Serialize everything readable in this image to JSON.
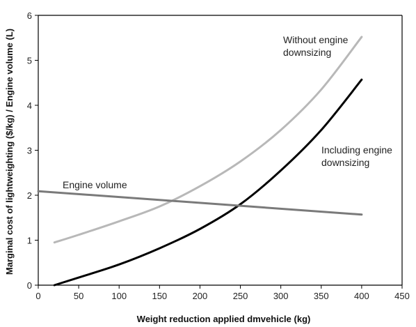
{
  "chart_data": {
    "type": "line",
    "xlabel": "Weight reduction applied dmvehicle (kg)",
    "ylabel": "Marginal cost of lightweighting ($/kg) / Engine volume (L)",
    "xlim": [
      0,
      450
    ],
    "ylim": [
      0,
      6
    ],
    "xticks": [
      0,
      50,
      100,
      150,
      200,
      250,
      300,
      350,
      400,
      450
    ],
    "yticks": [
      0,
      1,
      2,
      3,
      4,
      5,
      6
    ],
    "grid": false,
    "series": [
      {
        "name": "Without engine downsizing",
        "color": "#b8b8b8",
        "x": [
          20,
          50,
          100,
          150,
          200,
          250,
          300,
          350,
          400
        ],
        "y": [
          0.95,
          1.12,
          1.42,
          1.75,
          2.2,
          2.75,
          3.45,
          4.35,
          5.52
        ]
      },
      {
        "name": "Including engine downsizing",
        "color": "#000000",
        "x": [
          20,
          50,
          100,
          150,
          200,
          250,
          300,
          350,
          400
        ],
        "y": [
          0.0,
          0.17,
          0.46,
          0.82,
          1.25,
          1.8,
          2.55,
          3.45,
          4.57
        ]
      },
      {
        "name": "Engine volume",
        "color": "#7a7a7a",
        "x": [
          0,
          400
        ],
        "y": [
          2.09,
          1.57
        ]
      }
    ],
    "annotations": [
      {
        "line1": "Without engine",
        "line2": "downsizing",
        "series": 0
      },
      {
        "line1": "Including engine",
        "line2": "downsizing",
        "series": 1
      },
      {
        "line1": "Engine volume",
        "line2": "",
        "series": 2
      }
    ]
  }
}
